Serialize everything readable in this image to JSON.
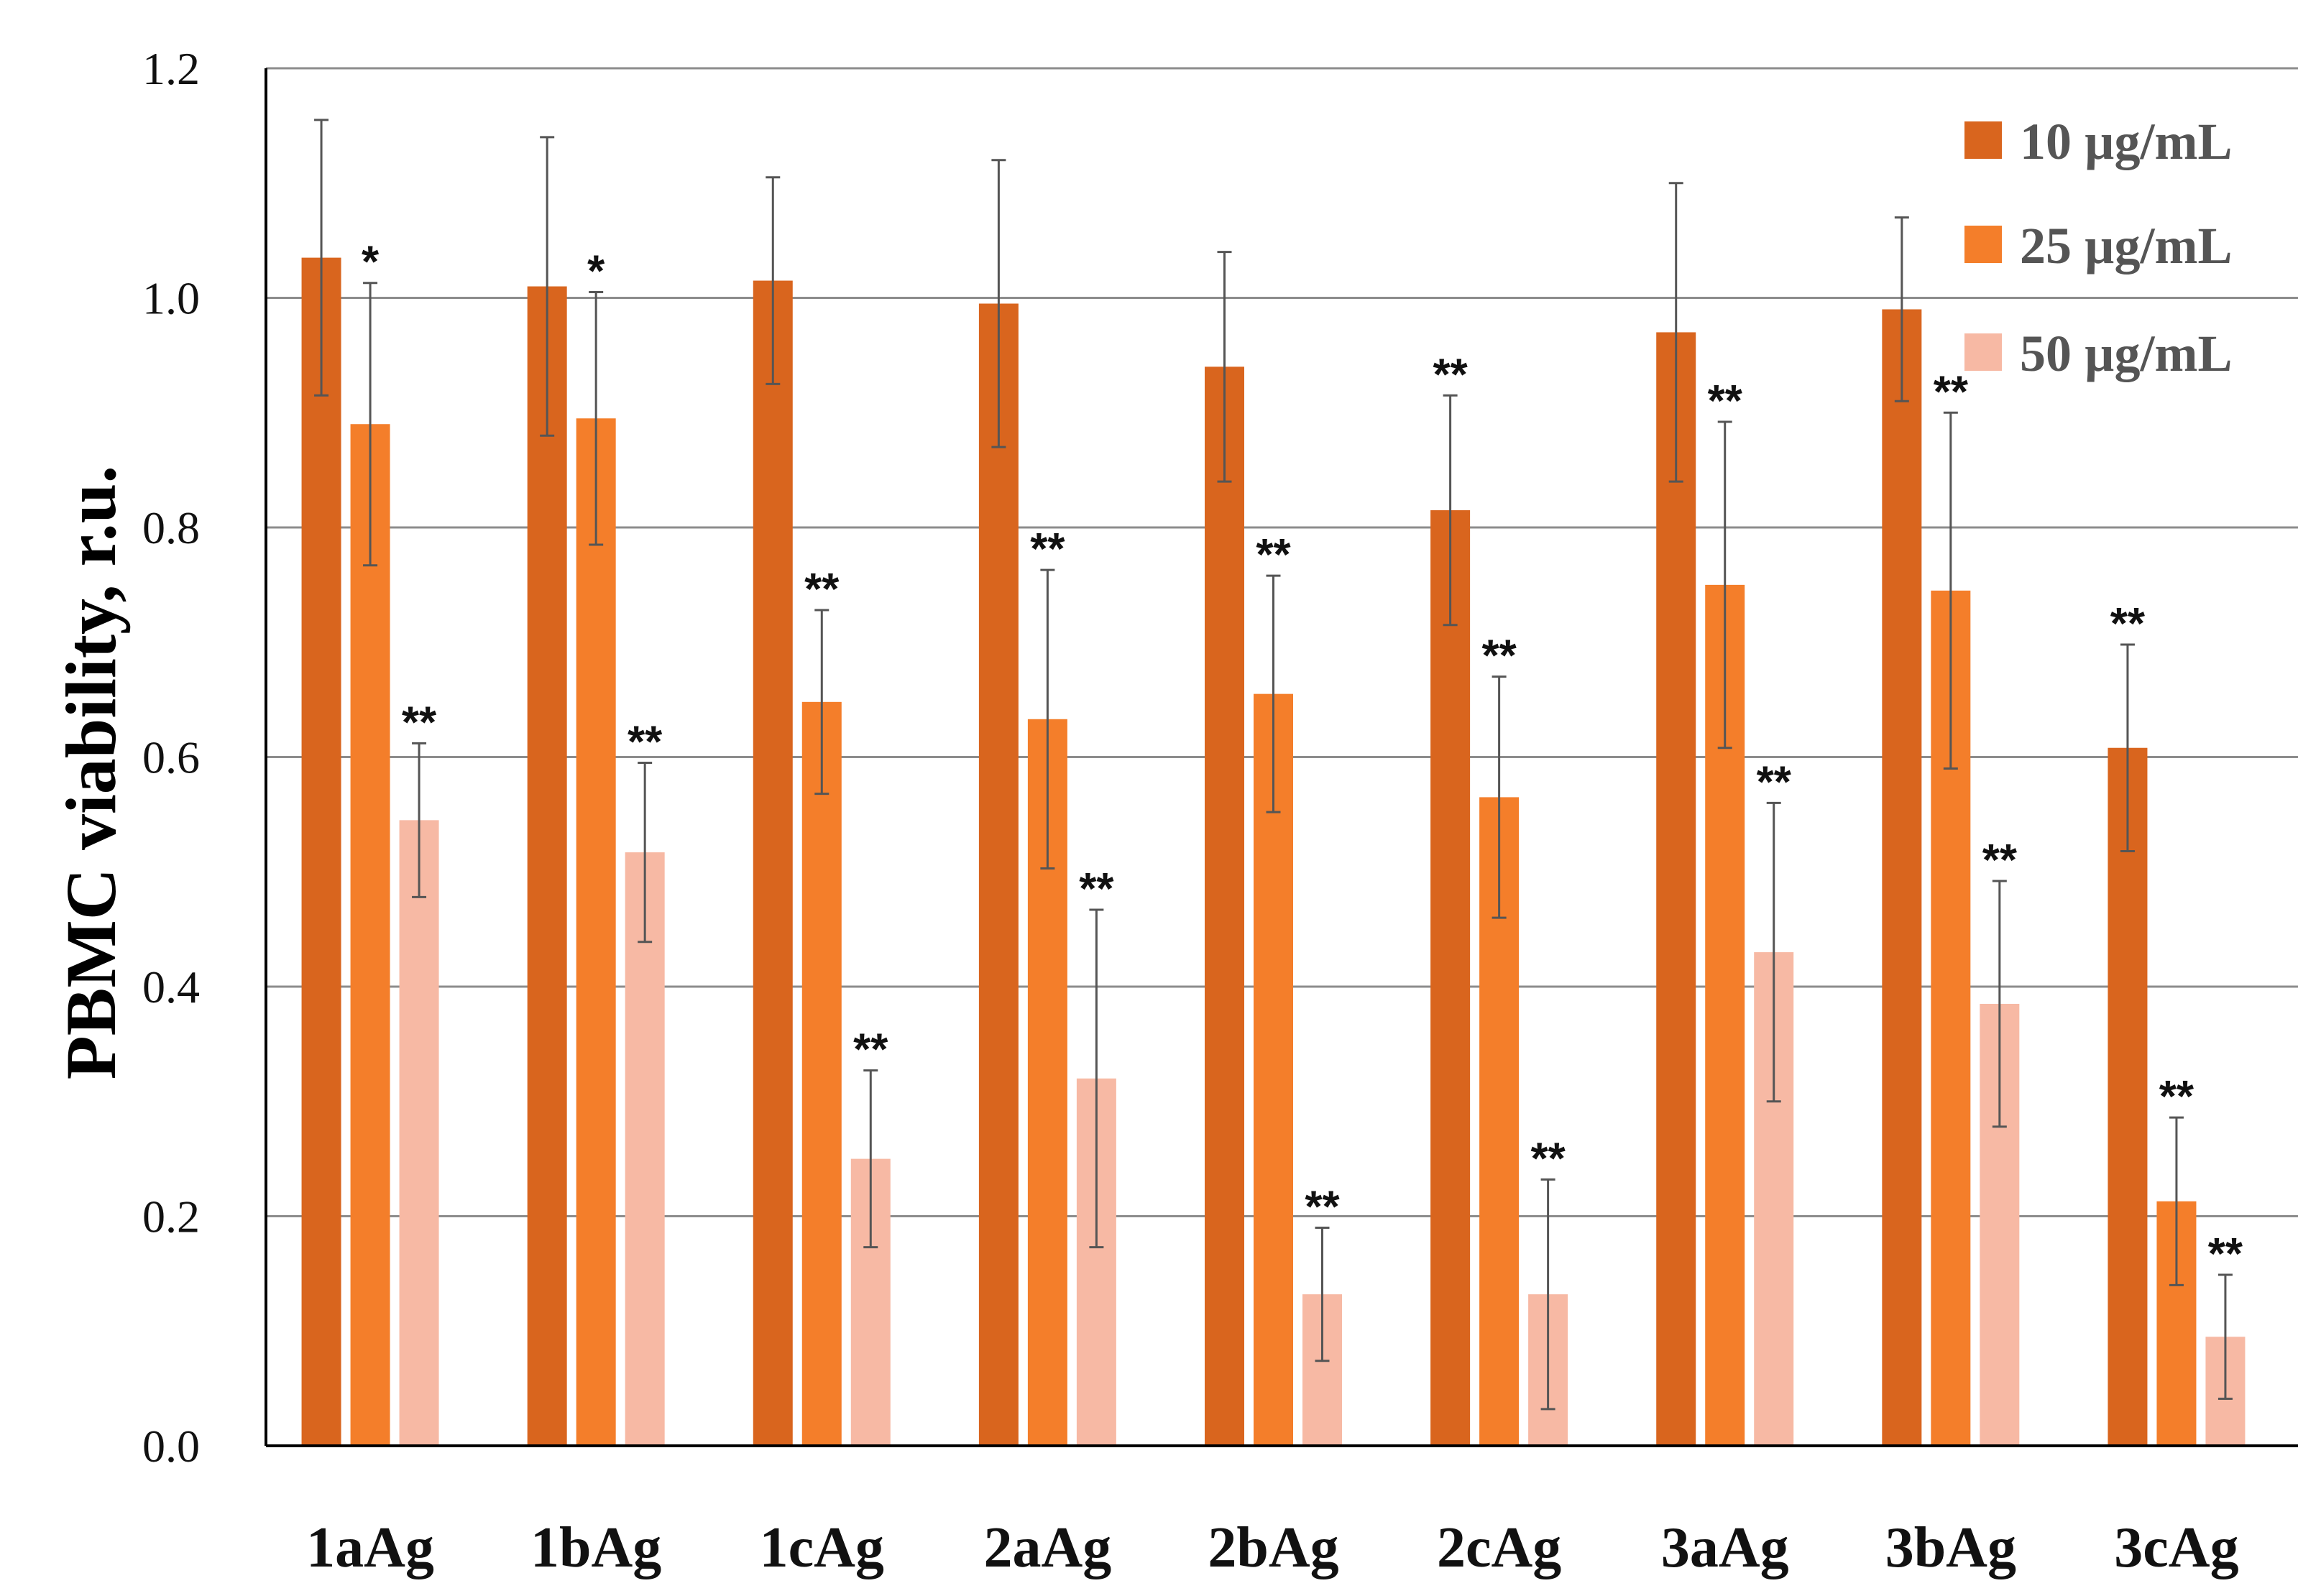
{
  "chart_data": {
    "type": "bar",
    "title": "",
    "xlabel": "",
    "ylabel": "PBMC viability, r.u.",
    "ylim": [
      0,
      1.2
    ],
    "yticks": [
      "0.0",
      "0.2",
      "0.4",
      "0.6",
      "0.8",
      "1.0",
      "1.2"
    ],
    "ytick_values": [
      0,
      0.2,
      0.4,
      0.6,
      0.8,
      1.0,
      1.2
    ],
    "grid": "horizontal",
    "legend_position": "top-right",
    "categories": [
      "1aAg",
      "1bAg",
      "1cAg",
      "2aAg",
      "2bAg",
      "2cAg",
      "3aAg",
      "3bAg",
      "3cAg"
    ],
    "series": [
      {
        "name": "10 µg/mL",
        "color": "#D9651E",
        "values": [
          1.035,
          1.01,
          1.015,
          0.995,
          0.94,
          0.815,
          0.97,
          0.99,
          0.608
        ],
        "errors": [
          0.12,
          0.13,
          0.09,
          0.125,
          0.1,
          0.1,
          0.13,
          0.08,
          0.09
        ],
        "significance": [
          "",
          "",
          "",
          "",
          "",
          "**",
          "",
          "",
          "**"
        ]
      },
      {
        "name": "25 µg/mL",
        "color": "#F47E2A",
        "values": [
          0.89,
          0.895,
          0.648,
          0.633,
          0.655,
          0.565,
          0.75,
          0.745,
          0.213
        ],
        "errors": [
          0.123,
          0.11,
          0.08,
          0.13,
          0.103,
          0.105,
          0.142,
          0.155,
          0.073
        ],
        "significance": [
          "*",
          "*",
          "**",
          "**",
          "**",
          "**",
          "**",
          "**",
          "**"
        ]
      },
      {
        "name": "50 µg/mL",
        "color": "#F7B9A4",
        "values": [
          0.545,
          0.517,
          0.25,
          0.32,
          0.132,
          0.132,
          0.43,
          0.385,
          0.095
        ],
        "errors": [
          0.067,
          0.078,
          0.077,
          0.147,
          0.058,
          0.1,
          0.13,
          0.107,
          0.054
        ],
        "significance": [
          "**",
          "**",
          "**",
          "**",
          "**",
          "**",
          "**",
          "**",
          "**"
        ]
      }
    ]
  }
}
